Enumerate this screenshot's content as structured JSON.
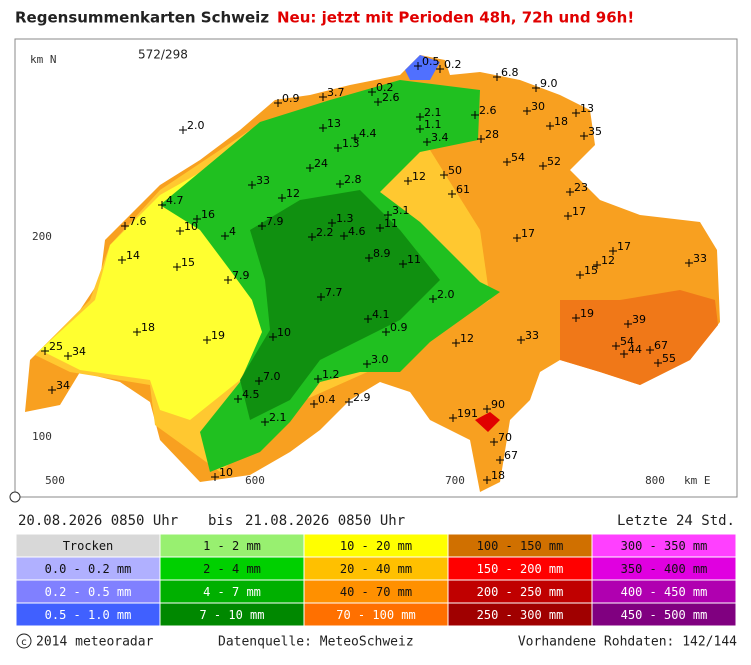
{
  "header": {
    "title": "Regensummenkarten Schweiz",
    "subtitle": "Neu: jetzt mit Perioden 48h, 72h und 96h!"
  },
  "map": {
    "cursor": "572/298",
    "axis_y_label": "km N",
    "axis_x_label": "km E",
    "y_ticks": [
      "200",
      "100"
    ],
    "x_ticks": [
      "500",
      "600",
      "700",
      "800"
    ],
    "values": [
      "0.5",
      "0.2",
      "6.8",
      "9.0",
      "0.9",
      "3.7",
      "0.2",
      "2.6",
      "2.0",
      "13",
      "2.1",
      "2.6",
      "30",
      "13",
      "1.1",
      "4.4",
      "1.3",
      "3.4",
      "28",
      "18",
      "35",
      "24",
      "54",
      "52",
      "33",
      "2.8",
      "12",
      "50",
      "61",
      "23",
      "4.7",
      "12",
      "16",
      "17",
      "3.1",
      "7.6",
      "10",
      "4",
      "7.9",
      "1.3",
      "2.2",
      "4.6",
      "11",
      "17",
      "14",
      "15",
      "8.9",
      "11",
      "17",
      "12",
      "15",
      "33",
      "7.9",
      "7.7",
      "2.0",
      "18",
      "19",
      "10",
      "4.1",
      "0.9",
      "19",
      "39",
      "12",
      "33",
      "25",
      "34",
      "54",
      "44",
      "67",
      "55",
      "3.0",
      "7.0",
      "1.2",
      "34",
      "4.5",
      "0.4",
      "2.9",
      "191",
      "90",
      "2.1",
      "70",
      "67",
      "10",
      "18"
    ]
  },
  "period": {
    "from": "20.08.2026 0850 Uhr",
    "bis": "bis",
    "to": "21.08.2026 0850 Uhr",
    "duration": "Letzte 24 Std."
  },
  "legend": {
    "rows": [
      [
        "Trocken",
        "1 - 2 mm",
        "10 - 20 mm",
        "100 - 150 mm",
        "300 - 350 mm"
      ],
      [
        "0.0 - 0.2 mm",
        "2 - 4 mm",
        "20 - 40 mm",
        "150 - 200 mm",
        "350 - 400 mm"
      ],
      [
        "0.2 - 0.5 mm",
        "4 - 7 mm",
        "40 - 70 mm",
        "200 - 250 mm",
        "400 - 450 mm"
      ],
      [
        "0.5 - 1.0 mm",
        "7 - 10 mm",
        "70 - 100 mm",
        "250 - 300 mm",
        "450 - 500 mm"
      ]
    ]
  },
  "footer": {
    "copyright": "2014 meteoradar",
    "source": "Datenquelle: MeteoSchweiz",
    "available": "Vorhandene Rohdaten: 142/144"
  }
}
